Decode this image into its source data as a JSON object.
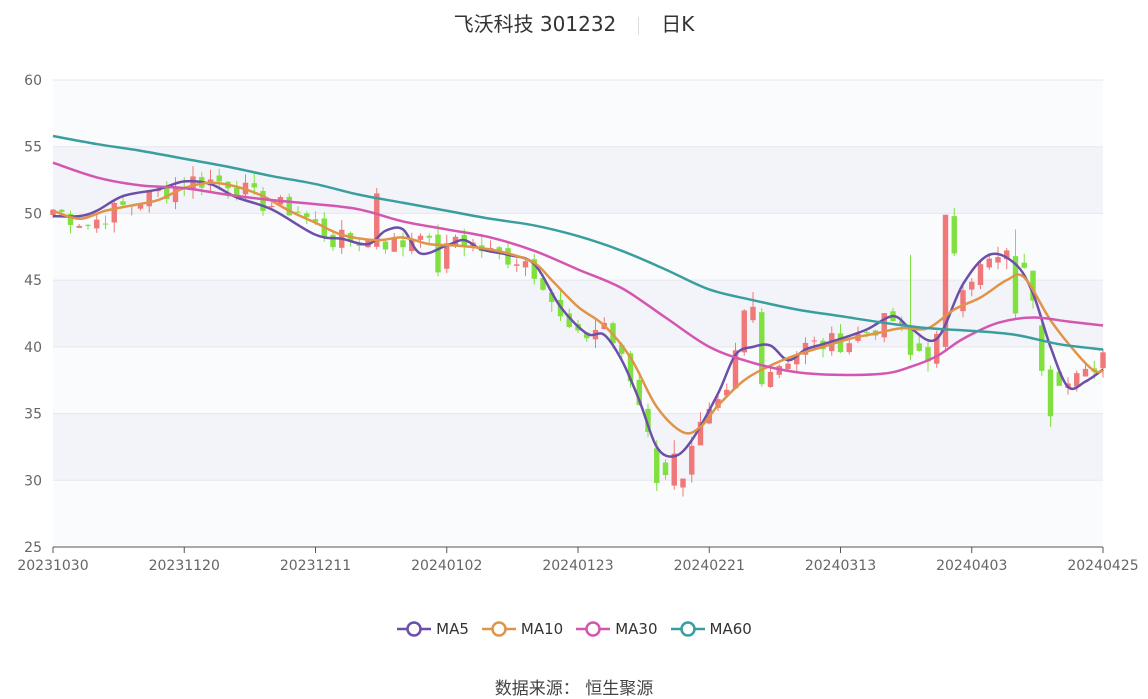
{
  "title": {
    "name": "飞沃科技 301232",
    "period": "日K"
  },
  "source_label": "数据来源：",
  "source_name": "恒生聚源",
  "colors": {
    "up": "#f07878",
    "down": "#80e040",
    "MA5": "#6c4fa8",
    "MA10": "#e09448",
    "MA30": "#d456b0",
    "MA60": "#3a9e9e",
    "band": "#eef0f6"
  },
  "chart_data": {
    "type": "candlestick",
    "ylim": [
      25,
      60
    ],
    "y_ticks": [
      25,
      30,
      35,
      40,
      45,
      50,
      55,
      60
    ],
    "x_tick_labels": [
      "20231030",
      "20231120",
      "20231211",
      "20240102",
      "20240123",
      "20240221",
      "20240313",
      "20240403",
      "20240425"
    ],
    "x_tick_index": [
      0,
      15,
      30,
      45,
      60,
      75,
      90,
      105,
      120
    ],
    "candles_count": 121,
    "anchor_closes": [
      [
        0,
        50.3
      ],
      [
        4,
        49.2
      ],
      [
        8,
        50.5
      ],
      [
        12,
        51.5
      ],
      [
        16,
        52.5
      ],
      [
        20,
        52.4
      ],
      [
        24,
        50.8
      ],
      [
        28,
        50.2
      ],
      [
        32,
        48.0
      ],
      [
        36,
        48.0
      ],
      [
        40,
        47.7
      ],
      [
        42,
        49.0
      ],
      [
        44,
        46.0
      ],
      [
        46,
        48.3
      ],
      [
        50,
        47.0
      ],
      [
        54,
        46.5
      ],
      [
        56,
        45.0
      ],
      [
        58,
        42.0
      ],
      [
        60,
        40.5
      ],
      [
        63,
        41.8
      ],
      [
        66,
        37.5
      ],
      [
        68,
        34.0
      ],
      [
        70,
        30.0
      ],
      [
        72,
        30.5
      ],
      [
        74,
        33.8
      ],
      [
        77,
        36.2
      ],
      [
        79,
        42.5
      ],
      [
        81,
        38.0
      ],
      [
        84,
        39.2
      ],
      [
        86,
        40.0
      ],
      [
        88,
        40.2
      ],
      [
        91,
        40.5
      ],
      [
        94,
        41.5
      ],
      [
        96,
        42.0
      ],
      [
        98,
        40.0
      ],
      [
        100,
        39.5
      ],
      [
        102,
        41.5
      ],
      [
        104,
        45.0
      ],
      [
        107,
        46.3
      ],
      [
        110,
        46.8
      ],
      [
        112,
        44.0
      ],
      [
        114,
        38.5
      ],
      [
        116,
        37.2
      ],
      [
        118,
        37.8
      ],
      [
        120,
        39.6
      ]
    ],
    "big_moves": [
      [
        37,
        47.5,
        51.5,
        47.3,
        51.9
      ],
      [
        102,
        40.0,
        49.9,
        39.8,
        49.9
      ],
      [
        103,
        49.8,
        47.0,
        46.8,
        50.4
      ],
      [
        110,
        46.8,
        42.5,
        42.0,
        48.8
      ],
      [
        98,
        41.3,
        39.4,
        39.0,
        46.9
      ],
      [
        69,
        32.4,
        29.8,
        29.2,
        33.0
      ],
      [
        71,
        29.6,
        32.0,
        29.3,
        33.0
      ],
      [
        113,
        41.6,
        38.2,
        37.8,
        41.8
      ],
      [
        114,
        38.3,
        34.8,
        34.0,
        38.6
      ],
      [
        80,
        42.0,
        43.0,
        41.8,
        44.1
      ],
      [
        81,
        42.6,
        37.2,
        37.0,
        42.9
      ]
    ],
    "series": [
      {
        "name": "MA5",
        "values": [
          [
            0,
            49.8
          ],
          [
            3,
            49.8
          ],
          [
            5,
            50.2
          ],
          [
            8,
            51.3
          ],
          [
            12,
            51.8
          ],
          [
            15,
            52.4
          ],
          [
            18,
            52.2
          ],
          [
            21,
            51.2
          ],
          [
            25,
            50.3
          ],
          [
            30,
            48.4
          ],
          [
            33,
            48.1
          ],
          [
            36,
            47.7
          ],
          [
            38,
            48.7
          ],
          [
            40,
            48.8
          ],
          [
            42,
            47.0
          ],
          [
            45,
            47.6
          ],
          [
            47,
            48.0
          ],
          [
            49,
            47.3
          ],
          [
            52,
            46.9
          ],
          [
            55,
            46.2
          ],
          [
            58,
            43.0
          ],
          [
            61,
            41.0
          ],
          [
            63,
            40.9
          ],
          [
            65,
            39.0
          ],
          [
            67,
            36.0
          ],
          [
            69,
            32.5
          ],
          [
            71,
            31.8
          ],
          [
            73,
            33.0
          ],
          [
            76,
            36.5
          ],
          [
            78,
            39.4
          ],
          [
            80,
            40.0
          ],
          [
            82,
            40.1
          ],
          [
            84,
            39.0
          ],
          [
            86,
            39.8
          ],
          [
            88,
            40.2
          ],
          [
            90,
            40.6
          ],
          [
            93,
            41.3
          ],
          [
            96,
            42.3
          ],
          [
            98,
            41.4
          ],
          [
            101,
            40.6
          ],
          [
            104,
            44.7
          ],
          [
            107,
            46.9
          ],
          [
            110,
            46.2
          ],
          [
            112,
            44.0
          ],
          [
            114,
            40.0
          ],
          [
            116,
            37.0
          ],
          [
            118,
            37.4
          ],
          [
            120,
            38.3
          ]
        ]
      },
      {
        "name": "MA10",
        "values": [
          [
            0,
            50.2
          ],
          [
            3,
            49.6
          ],
          [
            6,
            50.2
          ],
          [
            9,
            50.6
          ],
          [
            12,
            51.0
          ],
          [
            15,
            51.9
          ],
          [
            18,
            52.3
          ],
          [
            21,
            52.0
          ],
          [
            24,
            51.3
          ],
          [
            27,
            50.2
          ],
          [
            30,
            49.3
          ],
          [
            33,
            48.4
          ],
          [
            37,
            48.0
          ],
          [
            40,
            48.2
          ],
          [
            43,
            47.7
          ],
          [
            46,
            47.6
          ],
          [
            49,
            47.4
          ],
          [
            52,
            47.0
          ],
          [
            55,
            46.3
          ],
          [
            57,
            45.0
          ],
          [
            60,
            43.0
          ],
          [
            63,
            41.6
          ],
          [
            66,
            39.2
          ],
          [
            69,
            35.5
          ],
          [
            72,
            33.6
          ],
          [
            74,
            34.0
          ],
          [
            76,
            35.6
          ],
          [
            79,
            37.5
          ],
          [
            82,
            38.6
          ],
          [
            85,
            39.4
          ],
          [
            88,
            40.0
          ],
          [
            91,
            40.6
          ],
          [
            94,
            41.0
          ],
          [
            97,
            41.4
          ],
          [
            100,
            41.4
          ],
          [
            103,
            42.8
          ],
          [
            106,
            43.7
          ],
          [
            109,
            45.0
          ],
          [
            111,
            45.2
          ],
          [
            114,
            42.0
          ],
          [
            117,
            39.5
          ],
          [
            119,
            38.2
          ],
          [
            120,
            38.2
          ]
        ]
      },
      {
        "name": "MA30",
        "values": [
          [
            0,
            53.8
          ],
          [
            5,
            52.7
          ],
          [
            10,
            52.1
          ],
          [
            15,
            51.9
          ],
          [
            20,
            51.4
          ],
          [
            25,
            51.0
          ],
          [
            30,
            50.7
          ],
          [
            35,
            50.3
          ],
          [
            40,
            49.4
          ],
          [
            45,
            48.8
          ],
          [
            50,
            48.2
          ],
          [
            55,
            47.2
          ],
          [
            60,
            45.8
          ],
          [
            65,
            44.4
          ],
          [
            70,
            42.2
          ],
          [
            75,
            40.0
          ],
          [
            80,
            38.8
          ],
          [
            85,
            38.1
          ],
          [
            90,
            37.9
          ],
          [
            95,
            38.0
          ],
          [
            98,
            38.5
          ],
          [
            101,
            39.3
          ],
          [
            104,
            40.6
          ],
          [
            108,
            41.8
          ],
          [
            112,
            42.2
          ],
          [
            116,
            41.9
          ],
          [
            120,
            41.6
          ]
        ]
      },
      {
        "name": "MA60",
        "values": [
          [
            0,
            55.8
          ],
          [
            5,
            55.2
          ],
          [
            10,
            54.7
          ],
          [
            15,
            54.1
          ],
          [
            20,
            53.5
          ],
          [
            25,
            52.8
          ],
          [
            30,
            52.2
          ],
          [
            35,
            51.4
          ],
          [
            40,
            50.8
          ],
          [
            45,
            50.2
          ],
          [
            50,
            49.6
          ],
          [
            55,
            49.1
          ],
          [
            60,
            48.3
          ],
          [
            65,
            47.2
          ],
          [
            70,
            45.8
          ],
          [
            75,
            44.3
          ],
          [
            80,
            43.5
          ],
          [
            85,
            42.8
          ],
          [
            90,
            42.3
          ],
          [
            95,
            41.8
          ],
          [
            100,
            41.4
          ],
          [
            105,
            41.2
          ],
          [
            110,
            40.9
          ],
          [
            115,
            40.2
          ],
          [
            120,
            39.8
          ]
        ]
      }
    ]
  }
}
